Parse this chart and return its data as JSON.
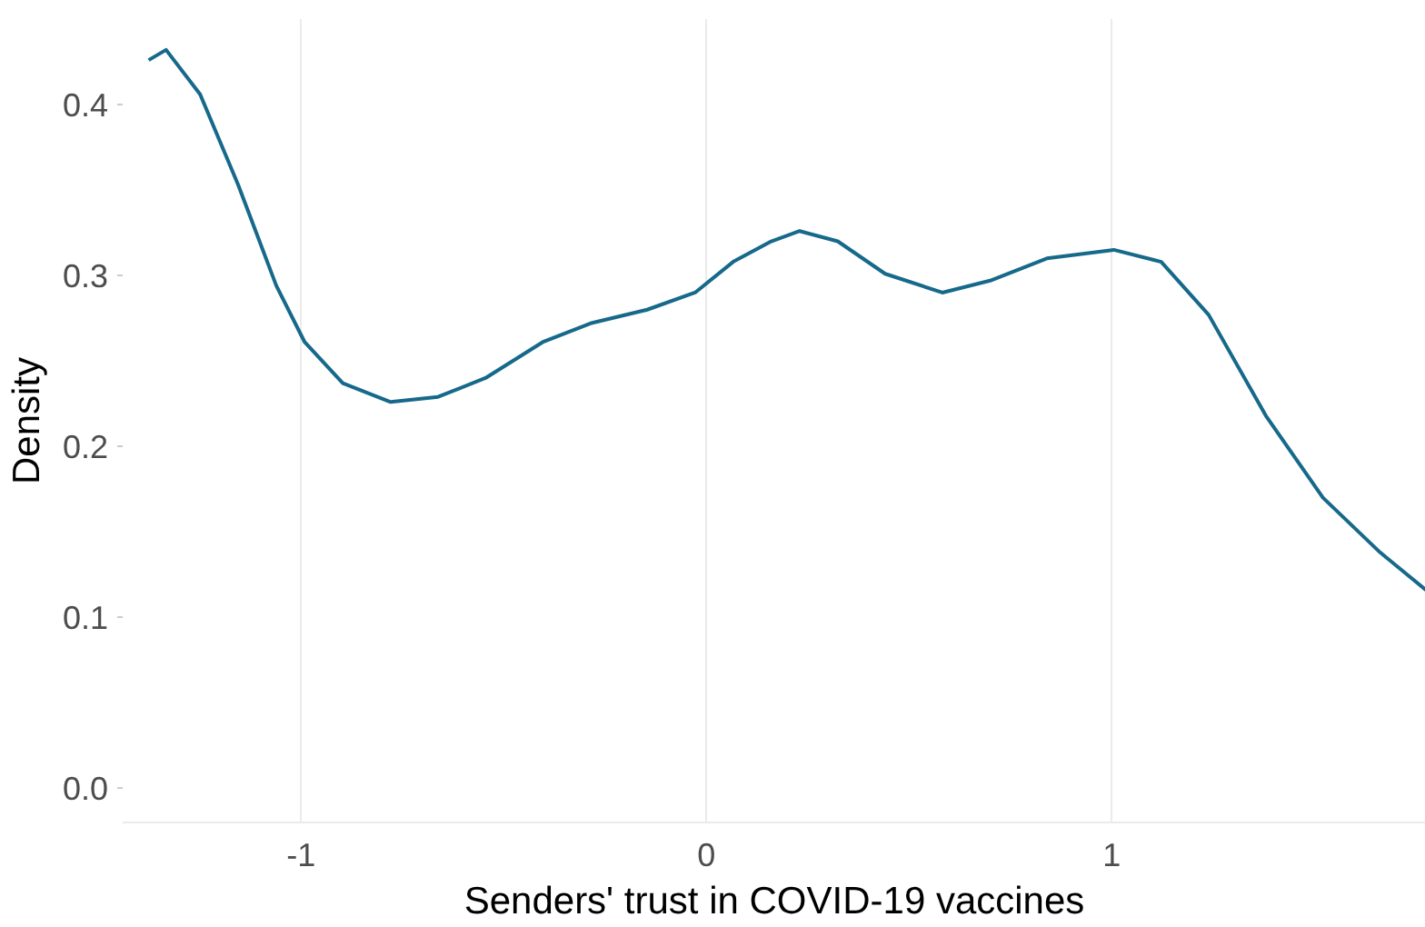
{
  "chart_data": {
    "type": "line",
    "xlabel": "Senders' trust in COVID-19 vaccines",
    "ylabel": "Density",
    "x": [
      -1.376,
      -1.333,
      -1.249,
      -1.155,
      -1.061,
      -0.991,
      -0.897,
      -0.779,
      -0.662,
      -0.545,
      -0.404,
      -0.286,
      -0.146,
      -0.028,
      0.066,
      0.16,
      0.23,
      0.324,
      0.441,
      0.582,
      0.7,
      0.84,
      1.005,
      1.122,
      1.239,
      1.38,
      1.521,
      1.662,
      1.775
    ],
    "series": [
      {
        "color": "#16698a",
        "values": [
          0.426,
          0.432,
          0.406,
          0.353,
          0.294,
          0.261,
          0.237,
          0.226,
          0.229,
          0.24,
          0.261,
          0.272,
          0.28,
          0.29,
          0.308,
          0.32,
          0.326,
          0.32,
          0.301,
          0.29,
          0.297,
          0.31,
          0.315,
          0.308,
          0.277,
          0.218,
          0.17,
          0.138,
          0.116
        ]
      }
    ],
    "xlim": [
      -1.44,
      1.775
    ],
    "ylim": [
      -0.02,
      0.45
    ],
    "xticks": [
      -1,
      0,
      1
    ],
    "yticks": [
      {
        "value": 0,
        "label": "0.0"
      },
      0.1,
      0.2,
      0.3,
      0.4
    ],
    "grid": "x",
    "marker": "none",
    "line_style": "solid"
  }
}
